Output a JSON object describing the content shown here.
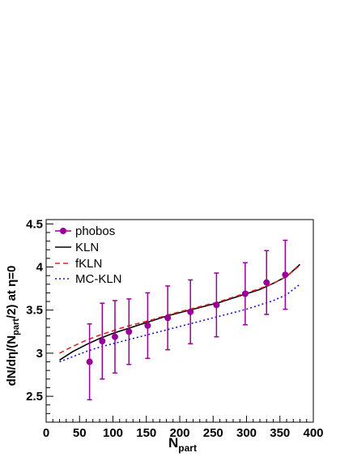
{
  "chart_data": {
    "type": "line",
    "xlabel_main": "N",
    "xlabel_sub": "part",
    "ylabel_parts": {
      "pre": "dN/dη/(N",
      "sub": "part",
      "post": "/2) at η=0"
    },
    "xlim": [
      0,
      400
    ],
    "ylim": [
      2.2,
      4.55
    ],
    "xticks": [
      0,
      50,
      100,
      150,
      200,
      250,
      300,
      350,
      400
    ],
    "yticks": [
      2.5,
      3,
      3.5,
      4,
      4.5
    ],
    "grid": false,
    "legend": {
      "placement": "top-left",
      "entries": [
        "phobos",
        "KLN",
        "fKLN",
        "MC-KLN"
      ]
    },
    "phobos": {
      "name": "phobos",
      "color": "#990099",
      "x": [
        65,
        84,
        103,
        124,
        152,
        182,
        216,
        255,
        298,
        330,
        358
      ],
      "y": [
        2.9,
        3.14,
        3.19,
        3.25,
        3.32,
        3.41,
        3.48,
        3.56,
        3.69,
        3.82,
        3.91
      ],
      "err": [
        0.44,
        0.44,
        0.42,
        0.38,
        0.38,
        0.37,
        0.37,
        0.37,
        0.36,
        0.37,
        0.4
      ]
    },
    "series": [
      {
        "name": "KLN",
        "color": "#000000",
        "dash": "",
        "x": [
          20,
          40,
          60,
          80,
          100,
          120,
          140,
          160,
          180,
          200,
          220,
          240,
          260,
          280,
          300,
          320,
          340,
          360,
          380
        ],
        "y": [
          2.92,
          3.02,
          3.1,
          3.17,
          3.23,
          3.28,
          3.33,
          3.38,
          3.43,
          3.47,
          3.51,
          3.55,
          3.59,
          3.64,
          3.69,
          3.74,
          3.81,
          3.89,
          4.03
        ]
      },
      {
        "name": "fKLN",
        "color": "#dd2222",
        "dash": "6,4",
        "x": [
          20,
          40,
          60,
          80,
          100,
          120,
          140,
          160,
          180,
          200,
          220,
          240,
          260,
          280,
          300,
          320,
          340,
          360,
          380
        ],
        "y": [
          3.0,
          3.08,
          3.15,
          3.21,
          3.26,
          3.31,
          3.35,
          3.39,
          3.44,
          3.48,
          3.52,
          3.56,
          3.6,
          3.65,
          3.7,
          3.75,
          3.81,
          3.89,
          4.02
        ]
      },
      {
        "name": "MC-KLN",
        "color": "#1111cc",
        "dash": "2,3",
        "x": [
          20,
          40,
          60,
          80,
          100,
          120,
          140,
          160,
          180,
          200,
          220,
          240,
          260,
          280,
          300,
          320,
          340,
          360,
          380
        ],
        "y": [
          2.9,
          2.96,
          3.02,
          3.07,
          3.11,
          3.15,
          3.19,
          3.23,
          3.27,
          3.31,
          3.35,
          3.39,
          3.43,
          3.47,
          3.51,
          3.56,
          3.61,
          3.68,
          3.8
        ]
      }
    ]
  }
}
